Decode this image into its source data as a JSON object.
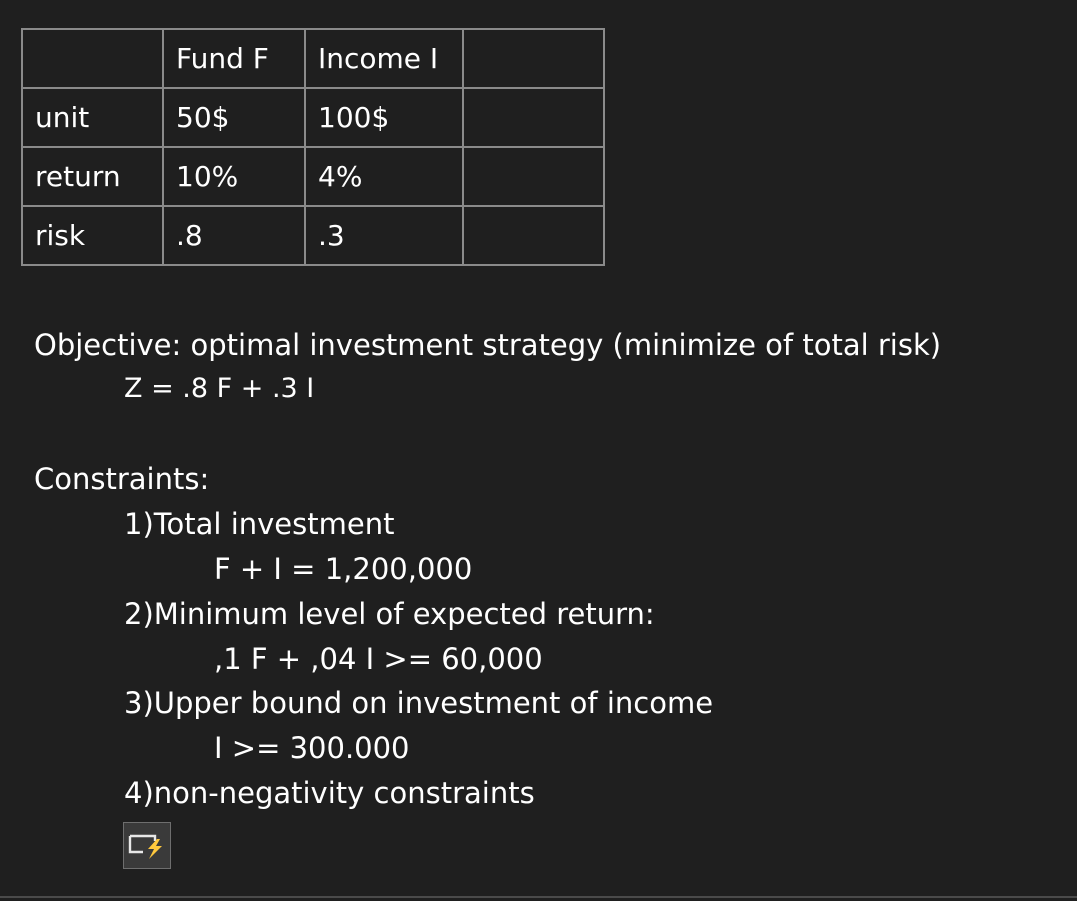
{
  "top_rule": "------------------------------------",
  "table": {
    "header": [
      "",
      "Fund F",
      "Income I",
      ""
    ],
    "rows": [
      [
        "unit",
        "50$",
        "100$",
        ""
      ],
      [
        "return",
        "10%",
        "4%",
        ""
      ],
      [
        "risk",
        ".8",
        ".3",
        ""
      ]
    ]
  },
  "objective": {
    "label": "Objective: optimal investment strategy (minimize of total risk)",
    "formula": "Z = .8 F + .3 I"
  },
  "constraints": {
    "label": "Constraints:",
    "items": [
      {
        "title": "1)Total investment",
        "equation": "F + I = 1,200,000"
      },
      {
        "title": "2)Minimum level of expected return:",
        "equation": ",1 F + ,04 I >= 60,000"
      },
      {
        "title": "3)Upper bound on investment of income",
        "equation": "I >= 300.000"
      },
      {
        "title": "4)non-negativity constraints"
      }
    ]
  },
  "icons": {
    "quick_action": "quick-action-lightning-icon"
  },
  "colors": {
    "background": "#1f1f1f",
    "text": "#ffffff",
    "table_border": "#8a8a8a",
    "lightning": "#ffc83d"
  }
}
